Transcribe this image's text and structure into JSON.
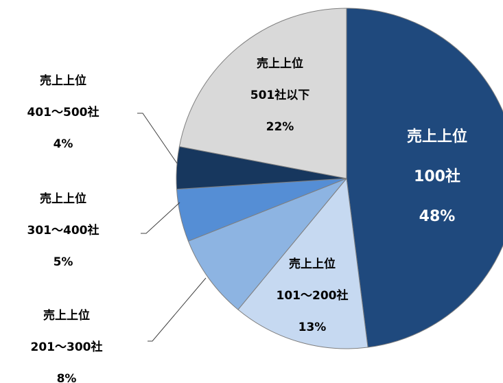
{
  "chart_data": {
    "type": "pie",
    "categories": [
      "売上上位\n100社",
      "売上上位\n101～200社",
      "売上上位\n201～300社",
      "売上上位\n301～400社",
      "売上上位\n401～500社",
      "売上上位\n501社以下"
    ],
    "values": [
      48,
      13,
      8,
      5,
      4,
      22
    ],
    "value_labels": [
      "48%",
      "13%",
      "8%",
      "5%",
      "4%",
      "22%"
    ],
    "colors": [
      "#1f497d",
      "#c6d9f1",
      "#8db4e2",
      "#558ed5",
      "#17375e",
      "#d9d9d9"
    ]
  }
}
